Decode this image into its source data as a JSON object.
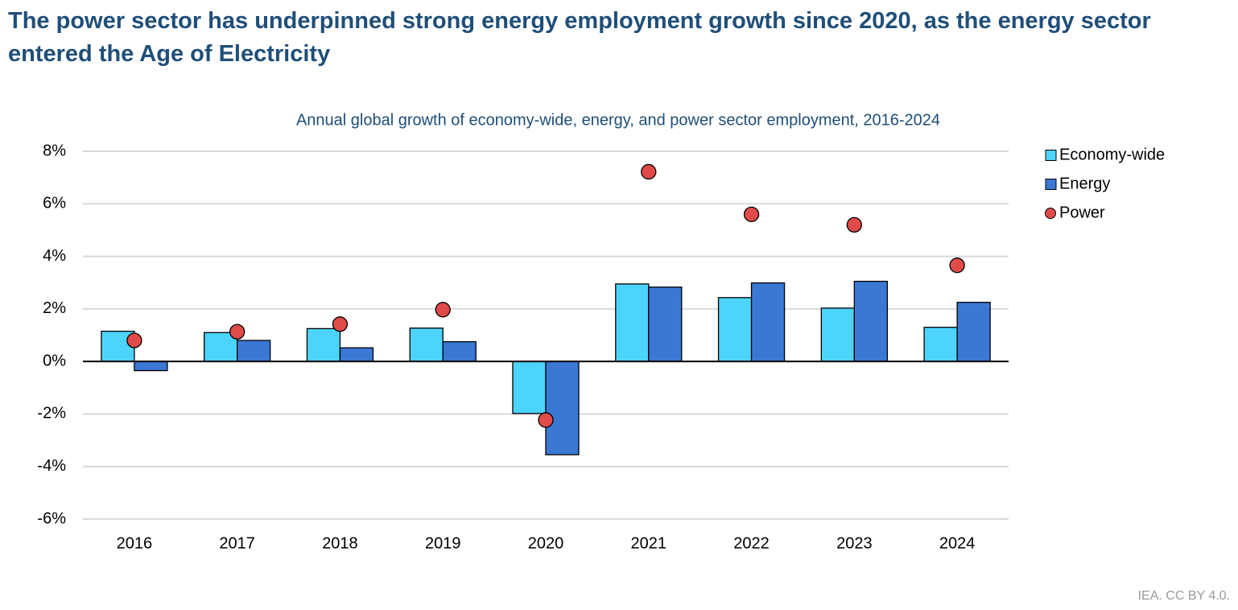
{
  "title": "The power sector has underpinned strong energy employment growth since 2020, as the energy sector entered the Age of Electricity",
  "footer": "IEA. CC BY 4.0.",
  "chart_data": {
    "type": "bar",
    "subtitle": "Annual global growth of economy-wide, energy, and power sector employment, 2016-2024",
    "categories": [
      "2016",
      "2017",
      "2018",
      "2019",
      "2020",
      "2021",
      "2022",
      "2023",
      "2024"
    ],
    "series": [
      {
        "name": "Economy-wide",
        "type": "bar",
        "color": "#4dd4fc",
        "values": [
          1.15,
          1.1,
          1.25,
          1.27,
          -1.98,
          2.95,
          2.43,
          2.03,
          1.3
        ]
      },
      {
        "name": "Energy",
        "type": "bar",
        "color": "#3b78d4",
        "values": [
          -0.35,
          0.8,
          0.52,
          0.75,
          -3.55,
          2.83,
          2.99,
          3.05,
          2.25
        ]
      },
      {
        "name": "Power",
        "type": "scatter",
        "color": "#e04b4a",
        "values": [
          0.8,
          1.13,
          1.42,
          1.97,
          -2.23,
          7.22,
          5.6,
          5.2,
          3.66
        ]
      }
    ],
    "ylim": [
      -6,
      8
    ],
    "yticks": [
      {
        "value": -6,
        "label": "-6%"
      },
      {
        "value": -4,
        "label": "-4%"
      },
      {
        "value": -2,
        "label": "-2%"
      },
      {
        "value": 0,
        "label": "0%"
      },
      {
        "value": 2,
        "label": "2%"
      },
      {
        "value": 4,
        "label": "4%"
      },
      {
        "value": 6,
        "label": "6%"
      },
      {
        "value": 8,
        "label": "8%"
      }
    ],
    "grid": true,
    "legend": "right"
  }
}
